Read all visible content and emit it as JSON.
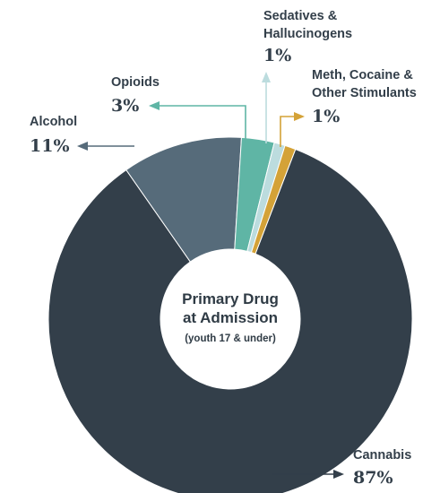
{
  "chart_data": {
    "type": "pie",
    "variant": "donut",
    "center_label": {
      "line1": "Primary Drug",
      "line2": "at Admission",
      "line3": "(youth 17 & under)"
    },
    "slices": [
      {
        "label": "Cannabis",
        "value": 87,
        "display": "87%",
        "color": "#333f4a"
      },
      {
        "label": "Alcohol",
        "value": 11,
        "display": "11%",
        "color": "#566b7a"
      },
      {
        "label": "Opioids",
        "value": 3,
        "display": "3%",
        "color": "#5fb5a5"
      },
      {
        "label_line1": "Sedatives &",
        "label_line2": "Hallucinogens",
        "value": 1,
        "display": "1%",
        "color": "#bcdcde"
      },
      {
        "label_line1": "Meth, Cocaine &",
        "label_line2": "Other Stimulants",
        "value": 1,
        "display": "1%",
        "color": "#d4a237"
      }
    ],
    "label_text_color": "#333f4a"
  }
}
